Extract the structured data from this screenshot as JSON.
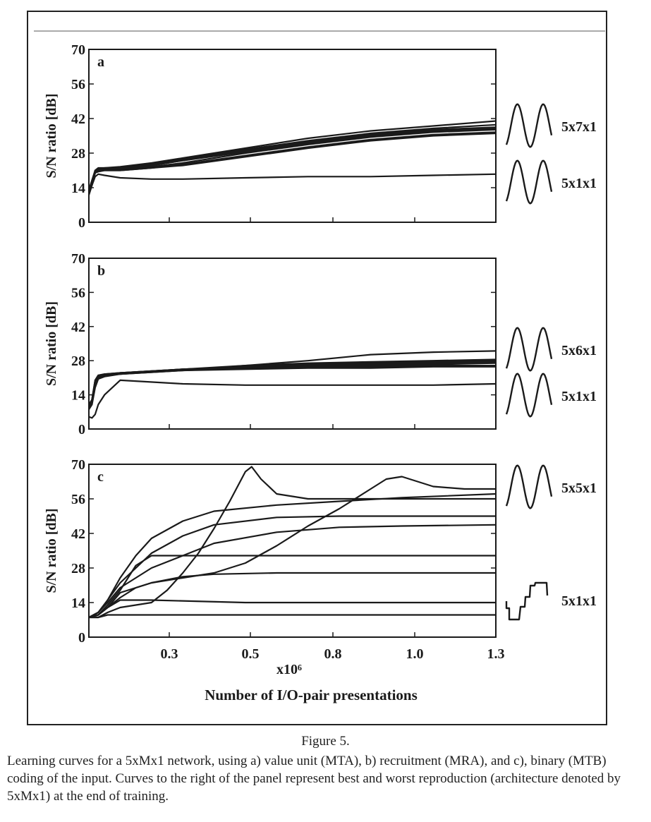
{
  "figure": {
    "caption_title": "Figure 5.",
    "caption_body": "Learning curves for a 5xMx1 network, using a) value unit (MTA), b) recruitment (MRA), and c), binary (MTB) coding of the input. Curves to the right of the panel represent best and worst reproduction (architecture denoted by 5xMx1) at the end of training."
  },
  "shared_axis": {
    "xlabel": "Number of I/O-pair presentations",
    "x_multiplier": "x10⁶",
    "x_ticks": [
      "0.3",
      "0.5",
      "0.8",
      "1.0",
      "1.3"
    ]
  },
  "colors": {
    "ink": "#1a1a1a",
    "frame": "#222222"
  },
  "chart_data": [
    {
      "type": "line",
      "panel_label": "a",
      "ylabel": "S/N ratio [dB]",
      "y_ticks": [
        0,
        14,
        28,
        42,
        56,
        70
      ],
      "ylim": [
        0,
        70
      ],
      "xlim": [
        0,
        1.3
      ],
      "series": [
        {
          "x": [
            0,
            0.01,
            0.02,
            0.03,
            0.05,
            0.1,
            0.2,
            0.3,
            0.5,
            0.7,
            0.9,
            1.1,
            1.3
          ],
          "y": [
            12,
            16,
            21,
            22,
            22,
            22.5,
            24,
            26,
            30,
            34,
            37,
            39,
            41
          ]
        },
        {
          "x": [
            0,
            0.01,
            0.02,
            0.03,
            0.05,
            0.1,
            0.2,
            0.3,
            0.5,
            0.7,
            0.9,
            1.1,
            1.3
          ],
          "y": [
            13,
            17,
            21,
            21.5,
            22,
            22,
            23.5,
            25.5,
            29.5,
            33,
            36,
            38,
            39.5
          ]
        },
        {
          "x": [
            0,
            0.01,
            0.02,
            0.03,
            0.05,
            0.1,
            0.2,
            0.3,
            0.5,
            0.7,
            0.9,
            1.1,
            1.3
          ],
          "y": [
            12,
            16,
            20,
            21,
            21.5,
            22,
            23,
            25,
            29,
            32.5,
            35.5,
            37.5,
            38.5
          ]
        },
        {
          "x": [
            0,
            0.01,
            0.02,
            0.03,
            0.05,
            0.1,
            0.2,
            0.3,
            0.5,
            0.7,
            0.9,
            1.1,
            1.3
          ],
          "y": [
            11,
            15,
            20,
            21,
            21.5,
            21.5,
            22.5,
            24,
            28,
            31.5,
            34.5,
            36.5,
            37.5
          ]
        },
        {
          "x": [
            0,
            0.01,
            0.02,
            0.03,
            0.05,
            0.1,
            0.2,
            0.3,
            0.5,
            0.7,
            0.9,
            1.1,
            1.3
          ],
          "y": [
            12,
            16,
            20,
            21,
            21,
            21,
            22,
            23.5,
            27,
            30.5,
            33.5,
            35.5,
            36.5
          ]
        },
        {
          "x": [
            0,
            0.01,
            0.02,
            0.03,
            0.05,
            0.1,
            0.2,
            0.3,
            0.5,
            0.7,
            0.9,
            1.1,
            1.3
          ],
          "y": [
            12,
            16,
            20,
            20.5,
            21,
            21,
            22,
            23,
            26.5,
            30,
            33,
            35,
            36
          ]
        },
        {
          "x": [
            0,
            0.01,
            0.02,
            0.03,
            0.05,
            0.1,
            0.2,
            0.3,
            0.5,
            0.7,
            0.9,
            1.1,
            1.3
          ],
          "y": [
            12,
            16,
            20.5,
            21,
            21.5,
            22,
            23,
            25,
            28.5,
            32,
            35,
            37,
            38
          ]
        },
        {
          "x": [
            0,
            0.01,
            0.02,
            0.03,
            0.05,
            0.1,
            0.2,
            0.3,
            0.5,
            0.7,
            0.9,
            1.1,
            1.3
          ],
          "y": [
            12,
            15,
            18.5,
            19.5,
            19,
            18,
            17.5,
            17.5,
            18,
            18.5,
            18.5,
            19,
            19.5
          ]
        }
      ],
      "waveforms": [
        {
          "label": "5x7x1",
          "shape": "sine-best"
        },
        {
          "label": "5x1x1",
          "shape": "sine-worst"
        }
      ]
    },
    {
      "type": "line",
      "panel_label": "b",
      "ylabel": "S/N ratio [dB]",
      "y_ticks": [
        0,
        14,
        28,
        42,
        56,
        70
      ],
      "ylim": [
        0,
        70
      ],
      "xlim": [
        0,
        1.3
      ],
      "series": [
        {
          "x": [
            0,
            0.01,
            0.02,
            0.03,
            0.05,
            0.1,
            0.3,
            0.5,
            0.7,
            0.9,
            1.1,
            1.3
          ],
          "y": [
            10,
            12,
            20,
            22,
            22.5,
            23,
            24,
            26,
            28,
            30.5,
            31.5,
            32
          ]
        },
        {
          "x": [
            0,
            0.01,
            0.02,
            0.03,
            0.05,
            0.1,
            0.3,
            0.5,
            0.7,
            0.9,
            1.1,
            1.3
          ],
          "y": [
            9,
            12,
            20,
            22,
            22.5,
            23,
            24.5,
            26,
            27,
            27.5,
            28,
            28.5
          ]
        },
        {
          "x": [
            0,
            0.01,
            0.02,
            0.03,
            0.05,
            0.1,
            0.3,
            0.5,
            0.7,
            0.9,
            1.1,
            1.3
          ],
          "y": [
            9,
            12,
            19,
            21.5,
            22,
            23,
            24.5,
            25.5,
            26.5,
            27,
            27.5,
            28
          ]
        },
        {
          "x": [
            0,
            0.01,
            0.02,
            0.03,
            0.05,
            0.1,
            0.3,
            0.5,
            0.7,
            0.9,
            1.1,
            1.3
          ],
          "y": [
            8,
            11,
            18,
            21,
            22,
            23,
            24.5,
            25.5,
            26,
            26.5,
            27,
            27.5
          ]
        },
        {
          "x": [
            0,
            0.01,
            0.02,
            0.03,
            0.05,
            0.1,
            0.3,
            0.5,
            0.7,
            0.9,
            1.1,
            1.3
          ],
          "y": [
            8,
            11,
            18,
            21,
            22,
            22.5,
            24.5,
            25,
            25.5,
            26,
            26.5,
            27
          ]
        },
        {
          "x": [
            0,
            0.01,
            0.02,
            0.03,
            0.05,
            0.1,
            0.3,
            0.5,
            0.7,
            0.9,
            1.1,
            1.3
          ],
          "y": [
            9,
            11,
            18,
            21,
            22,
            22.5,
            24,
            25,
            25.5,
            25.5,
            26,
            26
          ]
        },
        {
          "x": [
            0,
            0.01,
            0.02,
            0.03,
            0.05,
            0.1,
            0.3,
            0.5,
            0.7,
            0.9,
            1.1,
            1.3
          ],
          "y": [
            8,
            10,
            17,
            20.5,
            21.5,
            22.5,
            24,
            24.5,
            25,
            25,
            25.5,
            25.5
          ]
        },
        {
          "x": [
            0,
            0.01,
            0.02,
            0.03,
            0.05,
            0.1,
            0.3,
            0.5,
            0.7,
            0.9,
            1.1,
            1.3
          ],
          "y": [
            5,
            4.5,
            6,
            10,
            14,
            20,
            18.5,
            18,
            18,
            18,
            18,
            18.5
          ]
        }
      ],
      "waveforms": [
        {
          "label": "5x6x1",
          "shape": "sine-best"
        },
        {
          "label": "5x1x1",
          "shape": "sine-worst"
        }
      ]
    },
    {
      "type": "line",
      "panel_label": "c",
      "ylabel": "S/N ratio [dB]",
      "y_ticks": [
        0,
        14,
        28,
        42,
        56,
        70
      ],
      "ylim": [
        0,
        70
      ],
      "xlim": [
        0,
        1.3
      ],
      "series": [
        {
          "x": [
            0,
            0.03,
            0.06,
            0.1,
            0.15,
            0.2,
            0.25,
            0.3,
            0.35,
            0.4,
            0.45,
            0.5,
            0.52,
            0.55,
            0.6,
            0.7,
            0.8,
            1.0,
            1.3
          ],
          "y": [
            8,
            8,
            10,
            12,
            13,
            14,
            19,
            26,
            34,
            44,
            55,
            67,
            69,
            64,
            58,
            56,
            56,
            56,
            56
          ]
        },
        {
          "x": [
            0,
            0.03,
            0.06,
            0.1,
            0.2,
            0.3,
            0.4,
            0.5,
            0.6,
            0.7,
            0.8,
            0.9,
            0.95,
            1.0,
            1.1,
            1.2,
            1.3
          ],
          "y": [
            8,
            9,
            12,
            18,
            22,
            24,
            26,
            30,
            37,
            45,
            52,
            60,
            64,
            65,
            61,
            60,
            60
          ]
        },
        {
          "x": [
            0,
            0.03,
            0.06,
            0.1,
            0.15,
            0.2,
            0.3,
            0.4,
            0.6,
            0.8,
            1.0,
            1.3
          ],
          "y": [
            8,
            10,
            15,
            24,
            33,
            40,
            47,
            51,
            53.5,
            55,
            56.5,
            58
          ]
        },
        {
          "x": [
            0,
            0.03,
            0.06,
            0.1,
            0.15,
            0.2,
            0.3,
            0.4,
            0.6,
            0.8,
            1.0,
            1.3
          ],
          "y": [
            8,
            10,
            15,
            22,
            28,
            34,
            41,
            45.5,
            48.5,
            49,
            49,
            49
          ]
        },
        {
          "x": [
            0,
            0.03,
            0.06,
            0.1,
            0.15,
            0.2,
            0.3,
            0.4,
            0.6,
            0.8,
            1.0,
            1.3
          ],
          "y": [
            8,
            10,
            14,
            20,
            24,
            28,
            33,
            38,
            42.5,
            44.5,
            45,
            45.5
          ]
        },
        {
          "x": [
            0,
            0.03,
            0.06,
            0.1,
            0.15,
            0.2,
            0.25,
            0.3,
            0.5,
            1.0,
            1.3
          ],
          "y": [
            8,
            9,
            13,
            19,
            29,
            33,
            33,
            33,
            33,
            33,
            33
          ]
        },
        {
          "x": [
            0,
            0.03,
            0.06,
            0.1,
            0.15,
            0.2,
            0.3,
            0.4,
            0.6,
            1.0,
            1.3
          ],
          "y": [
            8,
            9,
            12,
            16,
            20,
            22,
            24.5,
            25.5,
            26,
            26,
            26
          ]
        },
        {
          "x": [
            0,
            0.03,
            0.06,
            0.1,
            0.15,
            0.2,
            0.5,
            1.0,
            1.3
          ],
          "y": [
            8,
            9,
            12,
            15,
            15,
            15,
            14,
            14,
            14
          ]
        },
        {
          "x": [
            0,
            0.03,
            0.06,
            0.1,
            0.2,
            0.5,
            1.0,
            1.3
          ],
          "y": [
            8,
            8,
            9,
            9,
            9,
            9,
            9,
            9
          ]
        }
      ],
      "waveforms": [
        {
          "label": "5x5x1",
          "shape": "sine-best"
        },
        {
          "label": "5x1x1",
          "shape": "binary-worst"
        }
      ]
    }
  ]
}
